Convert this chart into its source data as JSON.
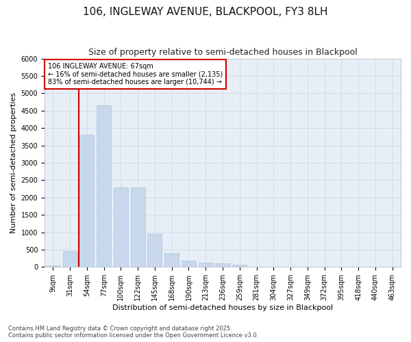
{
  "title_line1": "106, INGLEWAY AVENUE, BLACKPOOL, FY3 8LH",
  "title_line2": "Size of property relative to semi-detached houses in Blackpool",
  "xlabel": "Distribution of semi-detached houses by size in Blackpool",
  "ylabel": "Number of semi-detached properties",
  "categories": [
    "9sqm",
    "31sqm",
    "54sqm",
    "77sqm",
    "100sqm",
    "122sqm",
    "145sqm",
    "168sqm",
    "190sqm",
    "213sqm",
    "236sqm",
    "259sqm",
    "281sqm",
    "304sqm",
    "327sqm",
    "349sqm",
    "372sqm",
    "395sqm",
    "418sqm",
    "440sqm",
    "463sqm"
  ],
  "values": [
    40,
    450,
    3800,
    4650,
    2300,
    2300,
    950,
    400,
    190,
    120,
    100,
    75,
    10,
    0,
    0,
    0,
    0,
    0,
    0,
    0,
    0
  ],
  "bar_color": "#c8d8ec",
  "bar_edgecolor": "#b0c4de",
  "vline_color": "#cc0000",
  "vline_x": 1.5,
  "annotation_text": "106 INGLEWAY AVENUE: 67sqm\n← 16% of semi-detached houses are smaller (2,135)\n83% of semi-detached houses are larger (10,744) →",
  "annotation_box_facecolor": "#ffffff",
  "annotation_box_edgecolor": "#cc0000",
  "ylim": [
    0,
    6000
  ],
  "yticks": [
    0,
    500,
    1000,
    1500,
    2000,
    2500,
    3000,
    3500,
    4000,
    4500,
    5000,
    5500,
    6000
  ],
  "grid_color": "#d0dcea",
  "plot_bg_color": "#e8eef6",
  "fig_bg_color": "#ffffff",
  "footnote": "Contains HM Land Registry data © Crown copyright and database right 2025.\nContains public sector information licensed under the Open Government Licence v3.0.",
  "title_fontsize": 11,
  "subtitle_fontsize": 9,
  "xlabel_fontsize": 8,
  "ylabel_fontsize": 8,
  "tick_fontsize": 7,
  "footnote_fontsize": 6
}
